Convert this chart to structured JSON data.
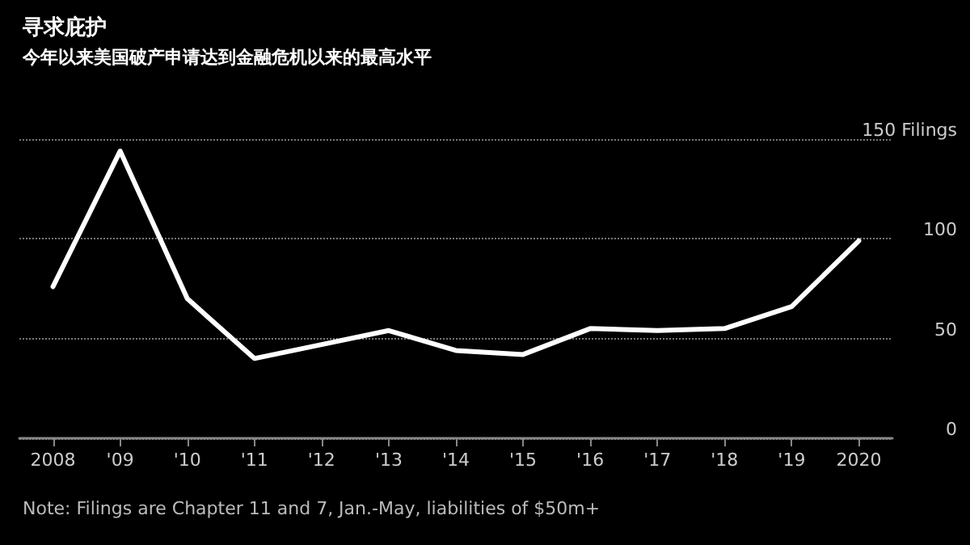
{
  "chart_data": {
    "type": "line",
    "title": "寻求庇护",
    "subtitle": "今年以来美国破产申请达到金融危机以来的最高水平",
    "categories": [
      "2008",
      "'09",
      "'10",
      "'11",
      "'12",
      "'13",
      "'14",
      "'15",
      "'16",
      "'17",
      "'18",
      "'19",
      "2020"
    ],
    "series": [
      {
        "color": "#ffffff",
        "values": [
          76,
          144,
          70,
          40,
          47,
          54,
          44,
          42,
          55,
          54,
          55,
          66,
          99
        ]
      }
    ],
    "ylim": [
      0,
      150
    ],
    "yticks": [
      0,
      50,
      100,
      {
        "value": 150,
        "label": "150 Filings"
      }
    ],
    "grid": "y",
    "marker": "none",
    "line_style": "solid",
    "annotations": [
      "Note: Filings are Chapter 11 and 7, Jan.-May, liabilities of $50m+"
    ]
  }
}
